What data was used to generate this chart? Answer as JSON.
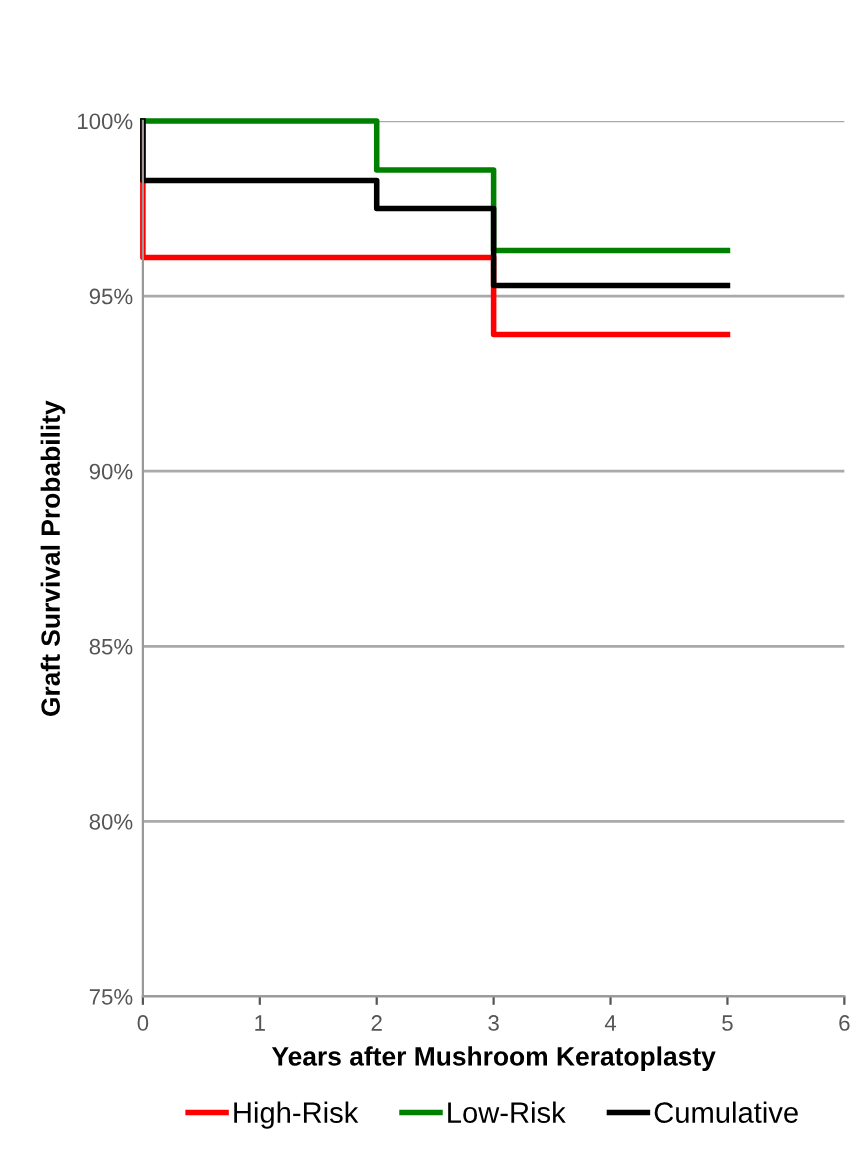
{
  "chart_data": {
    "type": "step",
    "xlabel": "Years after Mushroom Keratoplasty",
    "ylabel": "Graft Survival Probability",
    "series": [
      {
        "name": "High-Risk",
        "color": "#ff0000",
        "x": [
          0,
          0,
          3,
          5
        ],
        "values": [
          100,
          96.1,
          93.9,
          93.9
        ]
      },
      {
        "name": "Low-Risk",
        "color": "#008000",
        "x": [
          0,
          2,
          3,
          5
        ],
        "values": [
          100,
          98.6,
          96.3,
          96.3
        ]
      },
      {
        "name": "Cumulative",
        "color": "#000000",
        "x": [
          0,
          0,
          2,
          3,
          5
        ],
        "values": [
          100,
          98.3,
          97.5,
          95.3,
          95.3
        ]
      }
    ],
    "xlim": [
      0,
      6
    ],
    "xticks": [
      0,
      1,
      2,
      3,
      4,
      5,
      6
    ],
    "ylim": [
      75,
      100
    ],
    "yticks": [
      {
        "value": 75,
        "label": "75%"
      },
      {
        "value": 80,
        "label": "80%"
      },
      {
        "value": 85,
        "label": "85%"
      },
      {
        "value": 90,
        "label": "90%"
      },
      {
        "value": 95,
        "label": "95%"
      },
      {
        "value": 100,
        "label": "100%"
      }
    ],
    "grid": "y",
    "legend": "bottom",
    "line_style": "solid",
    "marker": "none"
  }
}
